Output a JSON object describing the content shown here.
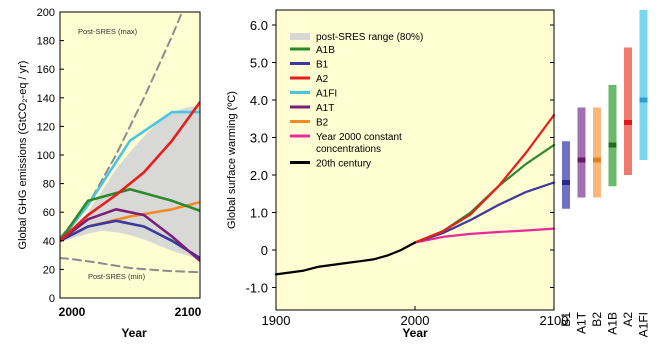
{
  "chart_data": [
    {
      "type": "line",
      "xlabel": "Year",
      "ylabel": "Global GHG emissions (GtCO₂-eq / yr)",
      "xlim": [
        2000,
        2100
      ],
      "ylim": [
        0,
        200
      ],
      "x_ticks": [
        "2000",
        "2100"
      ],
      "y_ticks": [
        "0",
        "20",
        "40",
        "60",
        "80",
        "100",
        "120",
        "140",
        "160",
        "180",
        "200"
      ],
      "annotations": [
        "Post-SRES (max)",
        "Post-SRES (min)"
      ],
      "band": {
        "x": [
          2000,
          2010,
          2020,
          2030,
          2040,
          2050,
          2060,
          2070,
          2080,
          2090,
          2100
        ],
        "upper": [
          41,
          50,
          60,
          75,
          90,
          102,
          113,
          123,
          130,
          133,
          135
        ],
        "lower": [
          39,
          42,
          45,
          47,
          46,
          44,
          41,
          37,
          33,
          30,
          27
        ]
      },
      "series": [
        {
          "name": "post-SRES (max)",
          "x": [
            2000,
            2020,
            2040,
            2060,
            2080,
            2100
          ],
          "values": [
            42,
            65,
            100,
            140,
            183,
            230
          ]
        },
        {
          "name": "post-SRES (min)",
          "x": [
            2000,
            2010,
            2025,
            2050,
            2075,
            2100
          ],
          "values": [
            28,
            27,
            25,
            21,
            19,
            18
          ]
        },
        {
          "name": "A1FI",
          "x": [
            2000,
            2020,
            2050,
            2080,
            2100
          ],
          "values": [
            40,
            65,
            110,
            130,
            130
          ]
        },
        {
          "name": "A2",
          "x": [
            2000,
            2020,
            2040,
            2060,
            2080,
            2100
          ],
          "values": [
            40,
            58,
            72,
            88,
            110,
            137
          ]
        },
        {
          "name": "A1B",
          "x": [
            2000,
            2020,
            2050,
            2080,
            2100
          ],
          "values": [
            40,
            68,
            76,
            68,
            61
          ]
        },
        {
          "name": "B2",
          "x": [
            2000,
            2020,
            2050,
            2080,
            2100
          ],
          "values": [
            40,
            50,
            57,
            62,
            67
          ]
        },
        {
          "name": "A1T",
          "x": [
            2000,
            2020,
            2040,
            2060,
            2080,
            2100
          ],
          "values": [
            40,
            55,
            62,
            58,
            43,
            26
          ]
        },
        {
          "name": "B1",
          "x": [
            2000,
            2020,
            2040,
            2060,
            2080,
            2100
          ],
          "values": [
            40,
            50,
            54,
            50,
            40,
            28
          ]
        }
      ]
    },
    {
      "type": "line",
      "xlabel": "Year",
      "ylabel": "Global surface warming (ºC)",
      "xlim": [
        1900,
        2100
      ],
      "ylim": [
        -1.6,
        6.4
      ],
      "x_ticks": [
        "1900",
        "2000",
        "2100"
      ],
      "y_ticks": [
        "-1.0",
        "0",
        "1.0",
        "2.0",
        "3.0",
        "4.0",
        "5.0",
        "6.0"
      ],
      "legend_title": "post-SRES range (80%)",
      "series": [
        {
          "name": "A1B",
          "x": [
            2000,
            2020,
            2040,
            2060,
            2080,
            2100
          ],
          "values": [
            0.2,
            0.5,
            1.0,
            1.7,
            2.3,
            2.8
          ]
        },
        {
          "name": "B1",
          "x": [
            2000,
            2020,
            2040,
            2060,
            2080,
            2100
          ],
          "values": [
            0.2,
            0.45,
            0.8,
            1.2,
            1.55,
            1.8
          ]
        },
        {
          "name": "A2",
          "x": [
            2000,
            2020,
            2040,
            2060,
            2080,
            2100
          ],
          "values": [
            0.2,
            0.5,
            0.95,
            1.7,
            2.6,
            3.6
          ]
        },
        {
          "name": "A1FI",
          "x": [],
          "values": []
        },
        {
          "name": "A1T",
          "x": [],
          "values": []
        },
        {
          "name": "B2",
          "x": [],
          "values": []
        },
        {
          "name": "Year 2000 constant",
          "name_line2": "concentrations",
          "x": [
            2000,
            2020,
            2040,
            2060,
            2080,
            2100
          ],
          "values": [
            0.2,
            0.35,
            0.43,
            0.48,
            0.52,
            0.57
          ]
        },
        {
          "name": "20th century",
          "x": [
            1900,
            1910,
            1920,
            1930,
            1940,
            1950,
            1960,
            1970,
            1980,
            1990,
            2000
          ],
          "values": [
            -0.65,
            -0.6,
            -0.55,
            -0.45,
            -0.4,
            -0.35,
            -0.3,
            -0.25,
            -0.15,
            0.0,
            0.2
          ]
        }
      ]
    },
    {
      "type": "bar",
      "categories": [
        "B1",
        "A1T",
        "B2",
        "A1B",
        "A2",
        "A1FI"
      ],
      "ylim": [
        -1.6,
        6.4
      ],
      "ranges": [
        {
          "low": 1.1,
          "high": 2.9,
          "best": 1.8
        },
        {
          "low": 1.4,
          "high": 3.8,
          "best": 2.4
        },
        {
          "low": 1.4,
          "high": 3.8,
          "best": 2.4
        },
        {
          "low": 1.7,
          "high": 4.4,
          "best": 2.8
        },
        {
          "low": 2.0,
          "high": 5.4,
          "best": 3.4
        },
        {
          "low": 2.4,
          "high": 6.4,
          "best": 4.0
        }
      ]
    }
  ],
  "colors": {
    "A1B": "#2c8a2c",
    "B1": "#3a3a9e",
    "A2": "#e61e1e",
    "A1FI": "#49c4e4",
    "A1T": "#7a1f78",
    "B2": "#f58a24",
    "constant": "#e82a9a",
    "century": "#000000",
    "band": "#d8d8d6",
    "panel": "#fffdd2",
    "bar_B1": "#7070c0",
    "bar_B1_best": "#2a2a8a",
    "bar_A1T": "#a070b0",
    "bar_A1T_best": "#6a1a6a",
    "bar_B2": "#f8b87c",
    "bar_B2_best": "#e0801e",
    "bar_A1B": "#6cb86c",
    "bar_A1B_best": "#1e6e1e",
    "bar_A2": "#f07a70",
    "bar_A2_best": "#e01818",
    "bar_A1FI": "#78d8f0",
    "bar_A1FI_best": "#2a9ed0"
  }
}
